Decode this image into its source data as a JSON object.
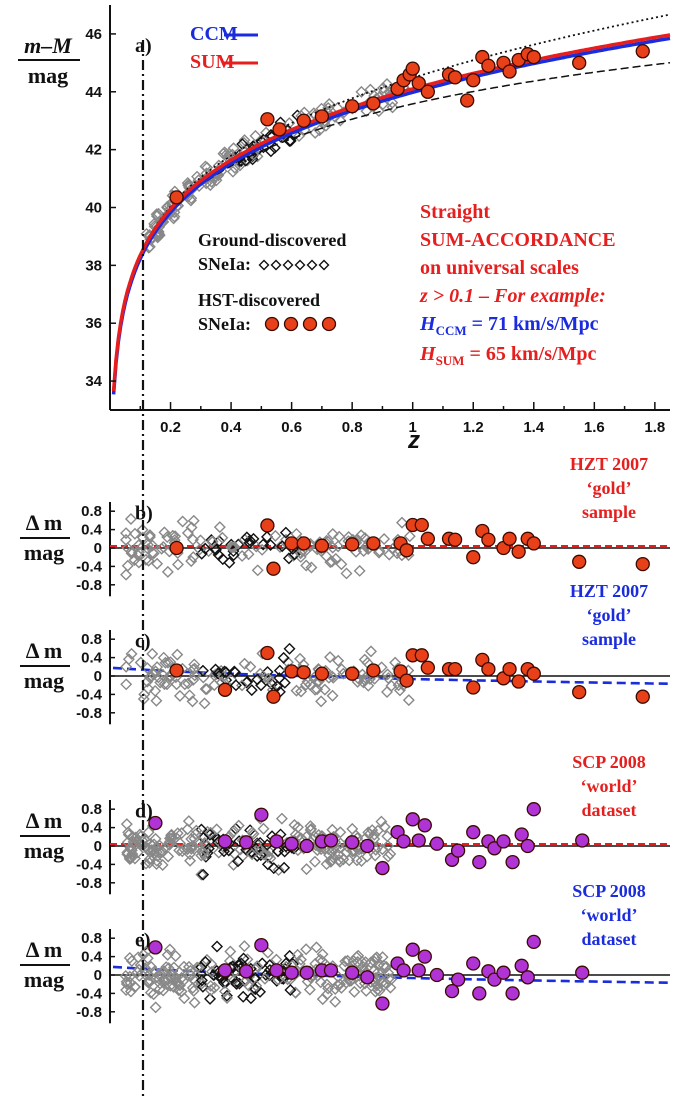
{
  "chart_data": [
    {
      "panel": "a",
      "type": "scatter",
      "ylabel_top": "m–M",
      "ylabel_bottom": "mag",
      "xlabel": "z",
      "xlim": [
        0,
        1.85
      ],
      "ylim": [
        33,
        47
      ],
      "xticks": [
        "0.2",
        "0.4",
        "0.6",
        "0.8",
        "1",
        "1.2",
        "1.4",
        "1.6",
        "1.8"
      ],
      "yticks": [
        "34",
        "36",
        "38",
        "40",
        "42",
        "44",
        "46"
      ],
      "legend": {
        "ccm": "CCM",
        "sum": "SUM"
      },
      "ground_label_1": "Ground-discovered",
      "ground_label_2": "SNeIa:",
      "hst_label_1": "HST-discovered",
      "hst_label_2": "SNeIa:",
      "ann": {
        "l1": "Straight",
        "l2": "SUM-ACCORDANCE",
        "l3": "on universal scales",
        "l4": "z > 0.1 – For example:",
        "hccm_H": "H",
        "hccm_sub": "CCM",
        "hccm_val": " = 71 km/s/Mpc",
        "hsum_H": "H",
        "hsum_sub": "SUM",
        "hsum_val": " = 65 km/s/Mpc"
      },
      "hst_points": [
        [
          0.22,
          40.35
        ],
        [
          0.52,
          43.05
        ],
        [
          0.56,
          42.7
        ],
        [
          0.64,
          43.0
        ],
        [
          0.7,
          43.15
        ],
        [
          0.8,
          43.5
        ],
        [
          0.87,
          43.6
        ],
        [
          0.95,
          44.1
        ],
        [
          0.97,
          44.4
        ],
        [
          0.99,
          44.6
        ],
        [
          1.0,
          44.8
        ],
        [
          1.02,
          44.3
        ],
        [
          1.05,
          44.0
        ],
        [
          1.12,
          44.6
        ],
        [
          1.14,
          44.5
        ],
        [
          1.18,
          43.7
        ],
        [
          1.2,
          44.4
        ],
        [
          1.23,
          45.2
        ],
        [
          1.25,
          44.9
        ],
        [
          1.3,
          45.0
        ],
        [
          1.32,
          44.7
        ],
        [
          1.35,
          45.1
        ],
        [
          1.38,
          45.3
        ],
        [
          1.4,
          45.2
        ],
        [
          1.55,
          45.0
        ],
        [
          1.76,
          45.4
        ]
      ],
      "colors": {
        "ccm": "#1a2cdc",
        "sum": "#e61e1e",
        "hst": "#e8411a",
        "ground": "#888888"
      }
    },
    {
      "panel": "b",
      "type": "scatter",
      "ylabel": "Δ m",
      "yunit": "mag",
      "yticks": [
        "0.8",
        "0.4",
        "0",
        "-0.4",
        "-0.8"
      ],
      "ylim": [
        -1.05,
        1.0
      ],
      "title_lines": [
        "HZT 2007",
        "‘gold’",
        "sample"
      ],
      "title_color": "#e61e1e",
      "ref_line": "SUM",
      "hst_points": [
        [
          0.22,
          0.0
        ],
        [
          0.52,
          0.49
        ],
        [
          0.54,
          -0.45
        ],
        [
          0.6,
          0.1
        ],
        [
          0.64,
          0.1
        ],
        [
          0.7,
          0.05
        ],
        [
          0.8,
          0.08
        ],
        [
          0.87,
          0.1
        ],
        [
          0.96,
          0.1
        ],
        [
          0.98,
          -0.05
        ],
        [
          1.0,
          0.5
        ],
        [
          1.03,
          0.5
        ],
        [
          1.05,
          0.2
        ],
        [
          1.12,
          0.2
        ],
        [
          1.14,
          0.18
        ],
        [
          1.2,
          -0.2
        ],
        [
          1.23,
          0.37
        ],
        [
          1.25,
          0.18
        ],
        [
          1.3,
          0.0
        ],
        [
          1.32,
          0.2
        ],
        [
          1.35,
          -0.08
        ],
        [
          1.38,
          0.2
        ],
        [
          1.4,
          0.1
        ],
        [
          1.55,
          -0.3
        ],
        [
          1.76,
          -0.35
        ]
      ]
    },
    {
      "panel": "c",
      "type": "scatter",
      "ylabel": "Δ m",
      "yunit": "mag",
      "yticks": [
        "0.8",
        "0.4",
        "0",
        "-0.4",
        "-0.8"
      ],
      "ylim": [
        -1.05,
        1.0
      ],
      "title_lines": [
        "HZT 2007",
        "‘gold’",
        "sample"
      ],
      "title_color": "#1a2cdc",
      "ref_line": "CCM",
      "hst_points": [
        [
          0.22,
          0.12
        ],
        [
          0.38,
          -0.3
        ],
        [
          0.52,
          0.5
        ],
        [
          0.54,
          -0.45
        ],
        [
          0.6,
          0.1
        ],
        [
          0.64,
          0.08
        ],
        [
          0.7,
          0.05
        ],
        [
          0.8,
          0.05
        ],
        [
          0.87,
          0.12
        ],
        [
          0.96,
          0.1
        ],
        [
          0.98,
          -0.1
        ],
        [
          1.0,
          0.45
        ],
        [
          1.03,
          0.45
        ],
        [
          1.05,
          0.18
        ],
        [
          1.12,
          0.15
        ],
        [
          1.14,
          0.15
        ],
        [
          1.2,
          -0.25
        ],
        [
          1.23,
          0.35
        ],
        [
          1.25,
          0.15
        ],
        [
          1.3,
          -0.05
        ],
        [
          1.32,
          0.15
        ],
        [
          1.35,
          -0.12
        ],
        [
          1.38,
          0.15
        ],
        [
          1.4,
          0.05
        ],
        [
          1.55,
          -0.35
        ],
        [
          1.76,
          -0.45
        ]
      ]
    },
    {
      "panel": "d",
      "type": "scatter",
      "ylabel": "Δ m",
      "yunit": "mag",
      "yticks": [
        "0.8",
        "0.4",
        "0",
        "-0.4",
        "-0.8"
      ],
      "ylim": [
        -1.05,
        1.0
      ],
      "title_lines": [
        "SCP 2008",
        "‘world’",
        "dataset"
      ],
      "title_color": "#e61e1e",
      "ref_line": "SUM",
      "purple_points": [
        [
          0.15,
          0.5
        ],
        [
          0.38,
          0.1
        ],
        [
          0.45,
          0.08
        ],
        [
          0.5,
          0.68
        ],
        [
          0.55,
          0.1
        ],
        [
          0.6,
          0.05
        ],
        [
          0.65,
          0.0
        ],
        [
          0.7,
          0.1
        ],
        [
          0.73,
          0.12
        ],
        [
          0.8,
          0.08
        ],
        [
          0.85,
          0.0
        ],
        [
          0.9,
          -0.48
        ],
        [
          0.95,
          0.3
        ],
        [
          0.97,
          0.1
        ],
        [
          1.0,
          0.58
        ],
        [
          1.02,
          0.12
        ],
        [
          1.04,
          0.45
        ],
        [
          1.08,
          0.05
        ],
        [
          1.13,
          -0.3
        ],
        [
          1.15,
          -0.1
        ],
        [
          1.2,
          0.3
        ],
        [
          1.22,
          -0.35
        ],
        [
          1.25,
          0.1
        ],
        [
          1.27,
          -0.05
        ],
        [
          1.3,
          0.1
        ],
        [
          1.33,
          -0.35
        ],
        [
          1.36,
          0.25
        ],
        [
          1.38,
          0.0
        ],
        [
          1.4,
          0.8
        ],
        [
          1.56,
          0.12
        ]
      ]
    },
    {
      "panel": "e",
      "type": "scatter",
      "ylabel": "Δ m",
      "yunit": "mag",
      "yticks": [
        "0.8",
        "0.4",
        "0",
        "-0.4",
        "-0.8"
      ],
      "ylim": [
        -1.05,
        1.0
      ],
      "title_lines": [
        "SCP 2008",
        "‘world’",
        "dataset"
      ],
      "title_color": "#1a2cdc",
      "ref_line": "CCM",
      "purple_points": [
        [
          0.15,
          0.6
        ],
        [
          0.38,
          0.1
        ],
        [
          0.45,
          0.08
        ],
        [
          0.5,
          0.65
        ],
        [
          0.55,
          0.1
        ],
        [
          0.6,
          0.05
        ],
        [
          0.65,
          0.05
        ],
        [
          0.7,
          0.1
        ],
        [
          0.73,
          0.1
        ],
        [
          0.8,
          0.05
        ],
        [
          0.85,
          -0.05
        ],
        [
          0.9,
          -0.62
        ],
        [
          0.95,
          0.25
        ],
        [
          0.97,
          0.1
        ],
        [
          1.0,
          0.55
        ],
        [
          1.02,
          0.1
        ],
        [
          1.04,
          0.4
        ],
        [
          1.08,
          0.0
        ],
        [
          1.13,
          -0.35
        ],
        [
          1.15,
          -0.1
        ],
        [
          1.2,
          0.25
        ],
        [
          1.22,
          -0.4
        ],
        [
          1.25,
          0.08
        ],
        [
          1.27,
          -0.1
        ],
        [
          1.3,
          0.05
        ],
        [
          1.33,
          -0.4
        ],
        [
          1.36,
          0.2
        ],
        [
          1.38,
          -0.05
        ],
        [
          1.4,
          0.72
        ],
        [
          1.56,
          0.05
        ]
      ]
    }
  ]
}
